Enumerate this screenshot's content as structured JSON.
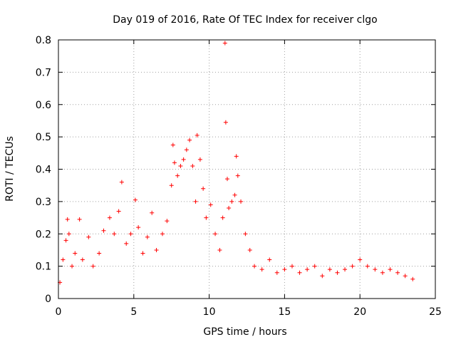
{
  "chart_data": {
    "type": "scatter",
    "title": "Day 019 of 2016, Rate Of TEC Index for receiver clgo",
    "xlabel": "GPS time / hours",
    "ylabel": "ROTI / TECUs",
    "xlim": [
      0,
      25
    ],
    "ylim": [
      0,
      0.8
    ],
    "x_ticks": [
      "0",
      "5",
      "10",
      "15",
      "20",
      "25"
    ],
    "y_ticks": [
      "0",
      "0.1",
      "0.2",
      "0.3",
      "0.4",
      "0.5",
      "0.6",
      "0.7",
      "0.8"
    ],
    "grid": true,
    "marker": "+",
    "color": "#ff0000",
    "series": [
      {
        "name": "ROTI",
        "points": [
          [
            0.1,
            0.05
          ],
          [
            0.3,
            0.12
          ],
          [
            0.5,
            0.18
          ],
          [
            0.6,
            0.245
          ],
          [
            0.7,
            0.2
          ],
          [
            0.9,
            0.1
          ],
          [
            1.1,
            0.14
          ],
          [
            1.4,
            0.245
          ],
          [
            1.6,
            0.12
          ],
          [
            2.0,
            0.19
          ],
          [
            2.3,
            0.1
          ],
          [
            2.7,
            0.14
          ],
          [
            3.0,
            0.21
          ],
          [
            3.4,
            0.25
          ],
          [
            3.7,
            0.2
          ],
          [
            4.0,
            0.27
          ],
          [
            4.2,
            0.36
          ],
          [
            4.5,
            0.17
          ],
          [
            4.8,
            0.2
          ],
          [
            5.1,
            0.305
          ],
          [
            5.3,
            0.22
          ],
          [
            5.6,
            0.14
          ],
          [
            5.9,
            0.19
          ],
          [
            6.2,
            0.265
          ],
          [
            6.5,
            0.15
          ],
          [
            6.9,
            0.2
          ],
          [
            7.2,
            0.24
          ],
          [
            7.5,
            0.35
          ],
          [
            7.6,
            0.475
          ],
          [
            7.7,
            0.42
          ],
          [
            7.9,
            0.38
          ],
          [
            8.1,
            0.41
          ],
          [
            8.3,
            0.43
          ],
          [
            8.5,
            0.46
          ],
          [
            8.7,
            0.49
          ],
          [
            8.9,
            0.41
          ],
          [
            9.1,
            0.3
          ],
          [
            9.2,
            0.505
          ],
          [
            9.4,
            0.43
          ],
          [
            9.6,
            0.34
          ],
          [
            9.8,
            0.25
          ],
          [
            10.1,
            0.29
          ],
          [
            10.4,
            0.2
          ],
          [
            10.7,
            0.15
          ],
          [
            10.9,
            0.25
          ],
          [
            11.05,
            0.79
          ],
          [
            11.1,
            0.545
          ],
          [
            11.2,
            0.37
          ],
          [
            11.3,
            0.28
          ],
          [
            11.5,
            0.3
          ],
          [
            11.7,
            0.32
          ],
          [
            11.8,
            0.44
          ],
          [
            11.9,
            0.38
          ],
          [
            12.1,
            0.3
          ],
          [
            12.4,
            0.2
          ],
          [
            12.7,
            0.15
          ],
          [
            13.0,
            0.1
          ],
          [
            13.5,
            0.09
          ],
          [
            14.0,
            0.12
          ],
          [
            14.5,
            0.08
          ],
          [
            15.0,
            0.09
          ],
          [
            15.5,
            0.1
          ],
          [
            16.0,
            0.08
          ],
          [
            16.5,
            0.09
          ],
          [
            17.0,
            0.1
          ],
          [
            17.5,
            0.07
          ],
          [
            18.0,
            0.09
          ],
          [
            18.5,
            0.08
          ],
          [
            19.0,
            0.09
          ],
          [
            19.5,
            0.1
          ],
          [
            20.0,
            0.12
          ],
          [
            20.5,
            0.1
          ],
          [
            21.0,
            0.09
          ],
          [
            21.5,
            0.08
          ],
          [
            22.0,
            0.09
          ],
          [
            22.5,
            0.08
          ],
          [
            23.0,
            0.07
          ],
          [
            23.5,
            0.06
          ]
        ]
      }
    ]
  }
}
